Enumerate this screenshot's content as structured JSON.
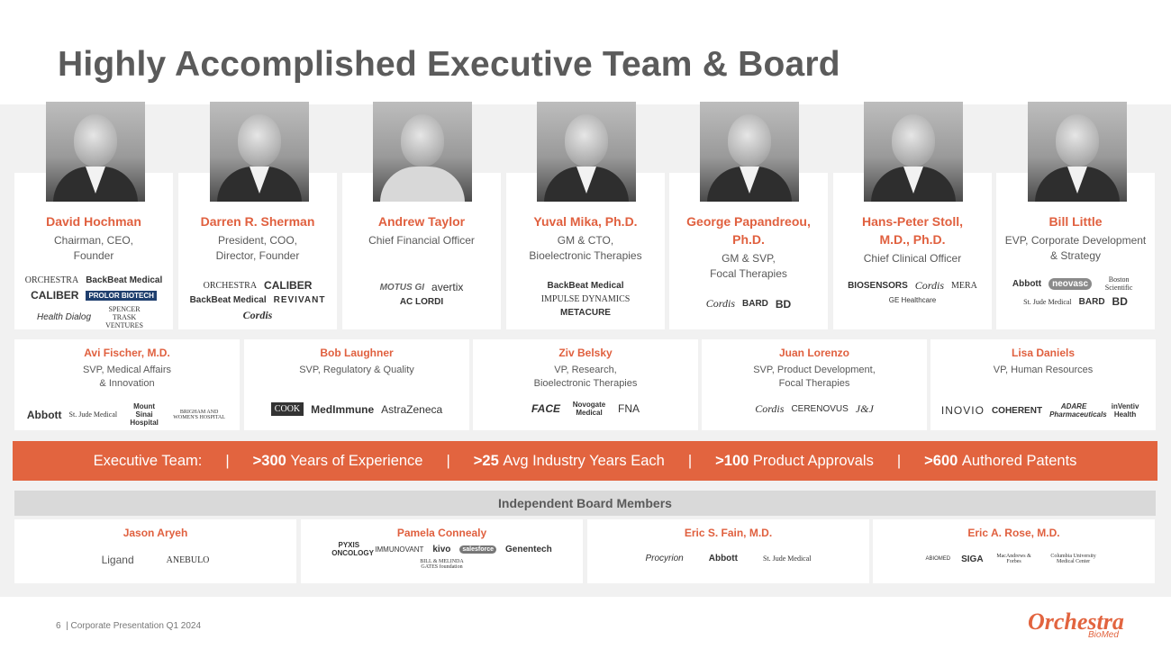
{
  "title": "Highly Accomplished Executive Team & Board",
  "executives": [
    {
      "name": "David Hochman",
      "role": "Chairman, CEO,\nFounder",
      "logos": [
        "ORCHESTRA",
        "BackBeat Medical",
        "CALIBER",
        "PROLOR BIOTECH",
        "Health Dialog",
        "SPENCER TRASK VENTURES"
      ]
    },
    {
      "name": "Darren R. Sherman",
      "role": "President, COO,\nDirector, Founder",
      "logos": [
        "ORCHESTRA",
        "CALIBER",
        "BackBeat Medical",
        "REVIVANT",
        "Cordis"
      ]
    },
    {
      "name": "Andrew Taylor",
      "role": "Chief Financial Officer",
      "logos": [
        "MOTUS GI",
        "avertix",
        "AC LORDI"
      ]
    },
    {
      "name": "Yuval Mika, Ph.D.",
      "role": "GM & CTO,\nBioelectronic Therapies",
      "logos": [
        "BackBeat Medical",
        "IMPULSE DYNAMICS",
        "METACURE"
      ]
    },
    {
      "name": "George Papandreou,\nPh.D.",
      "role": "GM & SVP,\nFocal Therapies",
      "logos": [
        "Cordis",
        "BARD",
        "BD"
      ]
    },
    {
      "name": "Hans-Peter Stoll,\nM.D., Ph.D.",
      "role": "Chief Clinical Officer",
      "logos": [
        "BIOSENSORS",
        "Cordis",
        "MERA",
        "GE Healthcare"
      ]
    },
    {
      "name": "Bill Little",
      "role": "EVP, Corporate Development\n& Strategy",
      "logos": [
        "Abbott",
        "neovasc",
        "Boston Scientific",
        "St. Jude Medical",
        "BARD",
        "BD"
      ]
    }
  ],
  "staff": [
    {
      "name": "Avi Fischer, M.D.",
      "role": "SVP, Medical Affairs\n& Innovation",
      "logos": [
        "Abbott",
        "St. Jude Medical",
        "Mount Sinai Hospital",
        "BRIGHAM AND WOMEN'S HOSPITAL"
      ]
    },
    {
      "name": "Bob Laughner",
      "role": "SVP, Regulatory & Quality",
      "logos": [
        "COOK",
        "MedImmune",
        "AstraZeneca"
      ]
    },
    {
      "name": "Ziv Belsky",
      "role": "VP, Research,\nBioelectronic Therapies",
      "logos": [
        "FACE",
        "Novogate Medical",
        "FNA"
      ]
    },
    {
      "name": "Juan Lorenzo",
      "role": "SVP, Product Development,\nFocal Therapies",
      "logos": [
        "Cordis",
        "CERENOVUS",
        "J&J"
      ]
    },
    {
      "name": "Lisa Daniels",
      "role": "VP, Human Resources",
      "logos": [
        "INOVIO",
        "COHERENT",
        "ADARE Pharmaceuticals",
        "inVentiv Health"
      ]
    }
  ],
  "stats": {
    "label": "Executive Team:",
    "separator": "|",
    "items": [
      {
        "value": ">300",
        "text": "Years of Experience"
      },
      {
        "value": ">25",
        "text": "Avg Industry Years Each"
      },
      {
        "value": ">100",
        "text": "Product Approvals"
      },
      {
        "value": ">600",
        "text": "Authored Patents"
      }
    ]
  },
  "board": {
    "header": "Independent Board Members",
    "members": [
      {
        "name": "Jason Aryeh",
        "logos": [
          "Ligand",
          "ANEBULO"
        ]
      },
      {
        "name": "Pamela Connealy",
        "logos": [
          "PYXIS ONCOLOGY",
          "IMMUNOVANT",
          "kivo",
          "salesforce",
          "Genentech",
          "BILL & MELINDA GATES foundation"
        ]
      },
      {
        "name": "Eric S. Fain, M.D.",
        "logos": [
          "Procyrion",
          "Abbott",
          "St. Jude Medical"
        ]
      },
      {
        "name": "Eric A. Rose, M.D.",
        "logos": [
          "ABIOMED",
          "SIGA",
          "MacAndrews & Forbes",
          "Columbia University Medical Center"
        ]
      }
    ]
  },
  "footer": {
    "page": "6",
    "text": "|  Corporate Presentation Q1 2024",
    "brand": "Orchestra",
    "brand_sub": "BioMed"
  },
  "colors": {
    "accent": "#e2643f",
    "title": "#5b5b5b",
    "band": "#f1f1f1"
  }
}
